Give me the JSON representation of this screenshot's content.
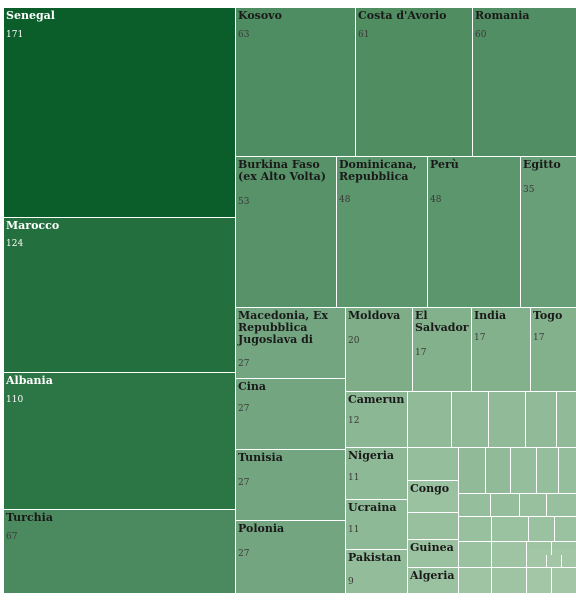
{
  "chart_data": {
    "type": "treemap",
    "colors": {
      "darkest": "#0b5e2a",
      "lightest": "#c4dec2",
      "text_dark": "#1a1a1a",
      "text_light": "#ffffff"
    },
    "items": [
      {
        "name": "Senegal",
        "value": "171"
      },
      {
        "name": "Marocco",
        "value": "124"
      },
      {
        "name": "Albania",
        "value": "110"
      },
      {
        "name": "Turchia",
        "value": "67"
      },
      {
        "name": "Kosovo",
        "value": "63"
      },
      {
        "name": "Costa d'Avorio",
        "value": "61"
      },
      {
        "name": "Romania",
        "value": "60"
      },
      {
        "name": "Burkina Faso (ex Alto Volta)",
        "value": "53"
      },
      {
        "name": "Dominicana, Repubblica",
        "value": "48"
      },
      {
        "name": "Perù",
        "value": "48"
      },
      {
        "name": "Egitto",
        "value": "35"
      },
      {
        "name": "Macedonia, Ex Repubblica Jugoslava di",
        "value": "27"
      },
      {
        "name": "Cina",
        "value": "27"
      },
      {
        "name": "Tunisia",
        "value": "27"
      },
      {
        "name": "Polonia",
        "value": "27"
      },
      {
        "name": "Moldova",
        "value": "20"
      },
      {
        "name": "El Salvador",
        "value": "17"
      },
      {
        "name": "India",
        "value": "17"
      },
      {
        "name": "Togo",
        "value": "17"
      },
      {
        "name": "Camerun",
        "value": "12"
      },
      {
        "name": "Nigeria",
        "value": "11"
      },
      {
        "name": "Ucraina",
        "value": "11"
      },
      {
        "name": "Pakistan",
        "value": "9"
      },
      {
        "name": "Congo",
        "value": ""
      },
      {
        "name": "Guinea",
        "value": ""
      },
      {
        "name": "Algeria",
        "value": ""
      }
    ],
    "small_cell_values": [
      10,
      10,
      10,
      10,
      10,
      10,
      10,
      8,
      8,
      8,
      8,
      8,
      8,
      7,
      7,
      7,
      7,
      6,
      6,
      6,
      6,
      5,
      5,
      5,
      5,
      5,
      4,
      4,
      4,
      4,
      4,
      4,
      4,
      4,
      3,
      3,
      3,
      3,
      3,
      3,
      3,
      3,
      2,
      2,
      2,
      2,
      2,
      2,
      2
    ]
  }
}
